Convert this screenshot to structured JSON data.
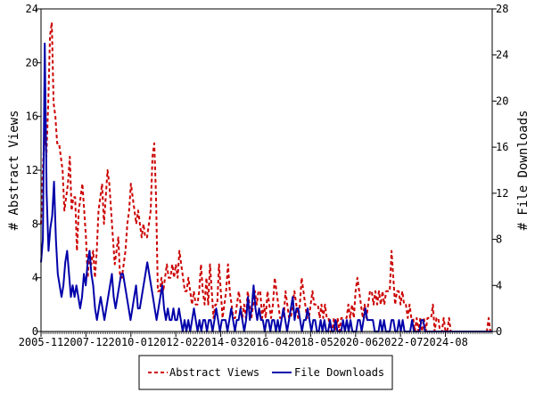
{
  "chart_data": {
    "type": "line",
    "title": "",
    "x_tick_labels": [
      "2005-11",
      "2007-12",
      "2010-01",
      "2012-02",
      "2014-03",
      "2016-04",
      "2018-05",
      "2020-06",
      "2022-07",
      "2024-08"
    ],
    "x_range": [
      "2005-11",
      "2025-08"
    ],
    "y_left": {
      "label": "# Abstract Views",
      "range": [
        0,
        24
      ],
      "ticks": [
        0,
        4,
        8,
        12,
        16,
        20,
        24
      ]
    },
    "y_right": {
      "label": "# File Downloads",
      "range": [
        0,
        28
      ],
      "ticks": [
        0,
        4,
        8,
        12,
        16,
        20,
        24,
        28
      ]
    },
    "grid": false,
    "legend_position": "bottom-center",
    "series": [
      {
        "name": "Abstract Views",
        "axis": "left",
        "color": "#cc0000",
        "style": "dashed",
        "values": [
          8,
          12,
          15,
          13,
          17,
          22,
          23,
          17,
          16,
          14,
          14,
          13,
          12,
          9,
          10,
          11,
          13,
          9,
          10,
          10,
          6,
          9,
          10,
          11,
          9,
          7,
          4,
          6,
          5,
          6,
          4,
          6,
          9,
          10,
          11,
          8,
          10,
          12,
          11,
          9,
          7,
          5,
          6,
          7,
          4,
          4,
          5,
          6,
          8,
          9,
          11,
          10,
          9,
          8,
          9,
          8,
          7,
          8,
          7,
          7,
          8,
          9,
          13,
          14,
          10,
          3,
          3,
          4,
          3,
          4,
          5,
          4,
          4,
          5,
          4,
          5,
          4,
          6,
          5,
          4,
          3,
          3,
          4,
          3,
          2,
          3,
          2,
          2,
          3,
          5,
          3,
          2,
          4,
          2,
          5,
          3,
          1,
          2,
          2,
          5,
          3,
          1,
          2,
          3,
          5,
          3,
          2,
          1,
          1,
          2,
          3,
          2,
          1,
          2,
          1,
          3,
          2,
          1,
          2,
          3,
          2,
          3,
          3,
          1,
          2,
          1,
          3,
          2,
          1,
          2,
          4,
          3,
          2,
          1,
          1,
          1,
          3,
          2,
          1,
          1,
          2,
          3,
          2,
          1,
          2,
          4,
          3,
          2,
          1,
          1,
          2,
          3,
          2,
          2,
          2,
          1,
          2,
          1,
          2,
          1,
          1,
          0,
          0,
          1,
          0,
          1,
          0,
          1,
          1,
          1,
          1,
          2,
          1,
          2,
          1,
          3,
          4,
          3,
          2,
          1,
          2,
          1,
          2,
          3,
          3,
          2,
          3,
          2,
          3,
          2,
          3,
          2,
          3,
          3,
          3,
          6,
          4,
          2,
          3,
          3,
          2,
          3,
          2,
          2,
          1,
          2,
          1,
          1,
          0,
          1,
          0,
          1,
          0,
          1,
          0,
          1,
          1,
          1,
          2,
          0,
          1,
          1,
          0,
          0,
          1,
          0,
          0,
          1,
          0,
          0,
          0,
          0,
          0,
          0,
          0,
          0,
          0,
          0,
          0,
          0,
          0,
          0,
          0,
          0,
          0,
          0,
          0,
          0,
          0,
          1,
          0,
          0
        ]
      },
      {
        "name": "File Downloads",
        "axis": "right",
        "color": "#0000aa",
        "style": "solid",
        "values": [
          6,
          8,
          25,
          12,
          7,
          9,
          10,
          13,
          8,
          5,
          4,
          3,
          4,
          6,
          7,
          5,
          3,
          4,
          3,
          4,
          3,
          2,
          3,
          5,
          4,
          6,
          7,
          5,
          4,
          2,
          1,
          2,
          3,
          2,
          1,
          2,
          3,
          4,
          5,
          3,
          2,
          3,
          4,
          5,
          5,
          4,
          3,
          2,
          1,
          2,
          3,
          4,
          2,
          2,
          3,
          4,
          5,
          6,
          5,
          4,
          3,
          2,
          1,
          2,
          3,
          4,
          2,
          1,
          2,
          1,
          1,
          2,
          1,
          1,
          2,
          1,
          0,
          1,
          0,
          1,
          0,
          1,
          2,
          1,
          0,
          1,
          0,
          1,
          1,
          0,
          1,
          1,
          0,
          1,
          2,
          1,
          0,
          1,
          1,
          1,
          0,
          1,
          2,
          1,
          0,
          1,
          1,
          2,
          1,
          0,
          1,
          3,
          1,
          2,
          4,
          2,
          1,
          2,
          1,
          1,
          0,
          1,
          1,
          0,
          1,
          1,
          0,
          1,
          0,
          1,
          2,
          1,
          0,
          1,
          2,
          3,
          1,
          2,
          2,
          1,
          0,
          1,
          1,
          2,
          1,
          0,
          1,
          1,
          0,
          0,
          1,
          0,
          1,
          0,
          0,
          1,
          0,
          0,
          1,
          0,
          0,
          0,
          1,
          0,
          1,
          0,
          1,
          0,
          0,
          0,
          1,
          1,
          0,
          1,
          2,
          1,
          1,
          1,
          1,
          0,
          0,
          0,
          1,
          0,
          1,
          0,
          0,
          0,
          1,
          1,
          0,
          0,
          1,
          0,
          1,
          0,
          0,
          0,
          0,
          1,
          0,
          0,
          0,
          0,
          1,
          1,
          0,
          0,
          0,
          0,
          0,
          0,
          0,
          0,
          0,
          0,
          0,
          0,
          0,
          0,
          0,
          0,
          0,
          0,
          0,
          0,
          0,
          0,
          0,
          0,
          0,
          0,
          0,
          0,
          0,
          0,
          0,
          0,
          0,
          0,
          0,
          0,
          0
        ]
      }
    ]
  }
}
